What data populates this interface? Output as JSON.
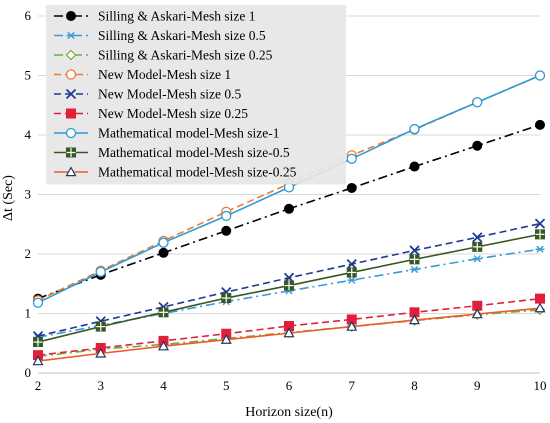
{
  "chart_data": {
    "type": "line",
    "xlabel": "Horizon size(n)",
    "ylabel": "Δt (Sec)",
    "x": [
      2,
      3,
      4,
      5,
      6,
      7,
      8,
      9,
      10
    ],
    "xlim": [
      2,
      10
    ],
    "ylim": [
      0,
      6
    ],
    "xticks": [
      "2",
      "3",
      "4",
      "5",
      "6",
      "7",
      "8",
      "9",
      "10"
    ],
    "yticks": [
      "0",
      "1",
      "2",
      "3",
      "4",
      "5",
      "6"
    ],
    "grid": "horizontal",
    "legend_position": "top-left",
    "series": [
      {
        "name": "Silling & Askari-Mesh size 1",
        "color": "#000000",
        "dash": "dashdot",
        "marker": "filled-circle",
        "values": [
          1.25,
          1.65,
          2.02,
          2.39,
          2.76,
          3.11,
          3.47,
          3.82,
          4.17
        ]
      },
      {
        "name": "Silling & Askari-Mesh size 0.5",
        "color": "#3a9ad9",
        "dash": "dashdot",
        "marker": "asterisk",
        "values": [
          0.6,
          0.8,
          1.0,
          1.2,
          1.38,
          1.56,
          1.74,
          1.92,
          2.08
        ]
      },
      {
        "name": "Silling & Askari-Mesh size 0.25",
        "color": "#70ad47",
        "dash": "dashdot",
        "marker": "diamond",
        "values": [
          0.28,
          0.4,
          0.48,
          0.58,
          0.68,
          0.78,
          0.88,
          0.98,
          1.06
        ]
      },
      {
        "name": "New Model-Mesh size 1",
        "color": "#ed7d31",
        "dash": "dash",
        "marker": "open-circle",
        "values": [
          1.22,
          1.72,
          2.22,
          2.71,
          3.18,
          3.66,
          4.09,
          4.55,
          5.0
        ]
      },
      {
        "name": "New Model-Mesh size 0.5",
        "color": "#1f3a93",
        "dash": "dash",
        "marker": "x",
        "values": [
          0.62,
          0.87,
          1.11,
          1.36,
          1.6,
          1.83,
          2.06,
          2.28,
          2.51
        ]
      },
      {
        "name": "New Model-Mesh size 0.25",
        "color": "#e0203a",
        "dash": "dash",
        "marker": "filled-square",
        "values": [
          0.3,
          0.42,
          0.54,
          0.66,
          0.79,
          0.9,
          1.02,
          1.13,
          1.25
        ]
      },
      {
        "name": "Mathematical model-Mesh size-1",
        "color": "#2e9bd6",
        "dash": "solid",
        "marker": "open-circle",
        "values": [
          1.18,
          1.7,
          2.19,
          2.64,
          3.12,
          3.6,
          4.1,
          4.55,
          5.0
        ]
      },
      {
        "name": "Mathematical model-Mesh size-0.5",
        "color": "#385723",
        "dash": "solid",
        "marker": "square-plus",
        "values": [
          0.52,
          0.78,
          1.02,
          1.26,
          1.47,
          1.69,
          1.91,
          2.12,
          2.33
        ]
      },
      {
        "name": "Mathematical model-Mesh size-0.25",
        "color": "#f05a28",
        "dash": "solid",
        "marker": "open-triangle",
        "values": [
          0.2,
          0.33,
          0.45,
          0.56,
          0.67,
          0.78,
          0.89,
          0.99,
          1.09
        ]
      }
    ]
  }
}
